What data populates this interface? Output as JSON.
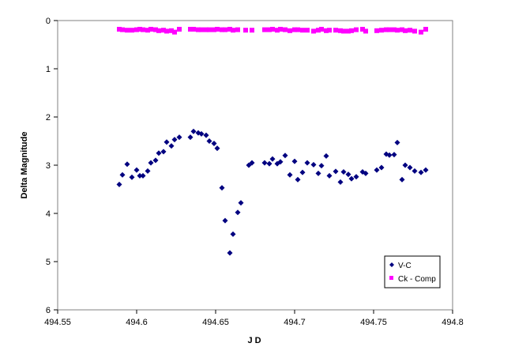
{
  "chart_data": {
    "type": "scatter",
    "title": "",
    "xlabel": "J D",
    "ylabel": "Delta Magnitude",
    "xlim": [
      494.55,
      494.8
    ],
    "ylim": [
      0,
      6
    ],
    "y_inverted": true,
    "x_ticks": [
      "494.55",
      "494.6",
      "494.65",
      "494.7",
      "494.75",
      "494.8"
    ],
    "y_ticks": [
      "0",
      "1",
      "2",
      "3",
      "4",
      "5",
      "6"
    ],
    "grid": false,
    "legend_position": "bottom-right",
    "series": [
      {
        "name": "V-C",
        "color": "#000080",
        "marker": "diamond",
        "x": [
          494.589,
          494.591,
          494.594,
          494.597,
          494.6,
          494.602,
          494.604,
          494.607,
          494.609,
          494.612,
          494.614,
          494.617,
          494.619,
          494.622,
          494.624,
          494.627,
          494.634,
          494.636,
          494.639,
          494.641,
          494.644,
          494.646,
          494.649,
          494.651,
          494.654,
          494.656,
          494.659,
          494.661,
          494.664,
          494.666,
          494.671,
          494.673,
          494.681,
          494.684,
          494.686,
          494.689,
          494.691,
          494.694,
          494.697,
          494.7,
          494.702,
          494.705,
          494.708,
          494.712,
          494.715,
          494.717,
          494.72,
          494.722,
          494.726,
          494.729,
          494.731,
          494.734,
          494.736,
          494.739,
          494.743,
          494.745,
          494.752,
          494.755,
          494.758,
          494.76,
          494.763,
          494.765,
          494.768,
          494.77,
          494.773,
          494.776,
          494.78,
          494.783
        ],
        "y": [
          3.4,
          3.2,
          2.98,
          3.25,
          3.1,
          3.22,
          3.22,
          3.12,
          2.95,
          2.9,
          2.75,
          2.72,
          2.52,
          2.6,
          2.47,
          2.42,
          2.42,
          2.3,
          2.33,
          2.35,
          2.38,
          2.5,
          2.55,
          2.65,
          3.47,
          4.15,
          4.82,
          4.43,
          3.98,
          3.78,
          3.0,
          2.95,
          2.95,
          2.97,
          2.87,
          2.97,
          2.93,
          2.8,
          3.2,
          2.92,
          3.3,
          3.15,
          2.95,
          2.99,
          3.17,
          3.01,
          2.81,
          3.22,
          3.13,
          3.35,
          3.14,
          3.19,
          3.28,
          3.24,
          3.14,
          3.17,
          3.1,
          3.05,
          2.77,
          2.79,
          2.78,
          2.53,
          3.3,
          3.0,
          3.05,
          3.12,
          3.15,
          3.1
        ],
        "note_ignore": ""
      },
      {
        "name": "Ck - Comp",
        "color": "#ff00ff",
        "marker": "square",
        "x": [
          494.589,
          494.591,
          494.594,
          494.597,
          494.6,
          494.602,
          494.604,
          494.607,
          494.609,
          494.612,
          494.614,
          494.617,
          494.619,
          494.622,
          494.624,
          494.627,
          494.634,
          494.636,
          494.639,
          494.641,
          494.644,
          494.646,
          494.649,
          494.651,
          494.654,
          494.656,
          494.659,
          494.661,
          494.664,
          494.669,
          494.673,
          494.681,
          494.684,
          494.686,
          494.689,
          494.691,
          494.694,
          494.697,
          494.7,
          494.702,
          494.705,
          494.708,
          494.712,
          494.715,
          494.717,
          494.72,
          494.722,
          494.726,
          494.729,
          494.731,
          494.734,
          494.736,
          494.739,
          494.743,
          494.745,
          494.752,
          494.755,
          494.758,
          494.76,
          494.763,
          494.765,
          494.768,
          494.77,
          494.773,
          494.776,
          494.78,
          494.783
        ],
        "y": [
          0.18,
          0.19,
          0.2,
          0.2,
          0.19,
          0.18,
          0.19,
          0.2,
          0.18,
          0.19,
          0.21,
          0.2,
          0.22,
          0.21,
          0.24,
          0.18,
          0.18,
          0.18,
          0.19,
          0.19,
          0.19,
          0.19,
          0.19,
          0.18,
          0.19,
          0.19,
          0.18,
          0.2,
          0.19,
          0.2,
          0.2,
          0.19,
          0.19,
          0.18,
          0.2,
          0.18,
          0.19,
          0.21,
          0.19,
          0.19,
          0.2,
          0.2,
          0.22,
          0.2,
          0.18,
          0.21,
          0.2,
          0.2,
          0.21,
          0.22,
          0.22,
          0.21,
          0.19,
          0.18,
          0.22,
          0.21,
          0.2,
          0.19,
          0.19,
          0.19,
          0.2,
          0.19,
          0.21,
          0.2,
          0.22,
          0.24,
          0.18
        ]
      }
    ]
  }
}
